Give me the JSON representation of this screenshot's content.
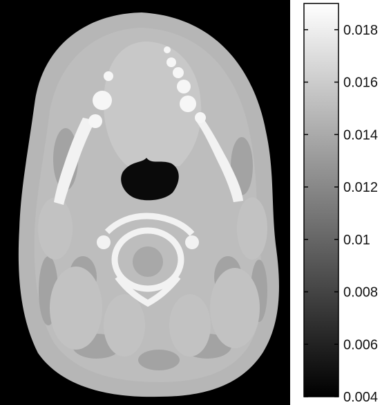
{
  "image": {
    "description_kind": "grayscale-ct-slice",
    "colors": {
      "background": "#000000",
      "soft_tissue": "#b4b4b4",
      "tissue_light": "#c6c6c6",
      "fat_darker": "#a2a2a2",
      "bone": "#f4f4f4",
      "air": "#0d0d0d"
    }
  },
  "colorbar": {
    "min": 0.004,
    "max": 0.019,
    "gradient_colors": [
      "#000000",
      "#ffffff"
    ],
    "ticks": [
      {
        "value": 0.004,
        "label": "0.004"
      },
      {
        "value": 0.006,
        "label": "0.006"
      },
      {
        "value": 0.008,
        "label": "0.008"
      },
      {
        "value": 0.01,
        "label": "0.01"
      },
      {
        "value": 0.012,
        "label": "0.012"
      },
      {
        "value": 0.014,
        "label": "0.014"
      },
      {
        "value": 0.016,
        "label": "0.016"
      },
      {
        "value": 0.018,
        "label": "0.018"
      }
    ]
  }
}
